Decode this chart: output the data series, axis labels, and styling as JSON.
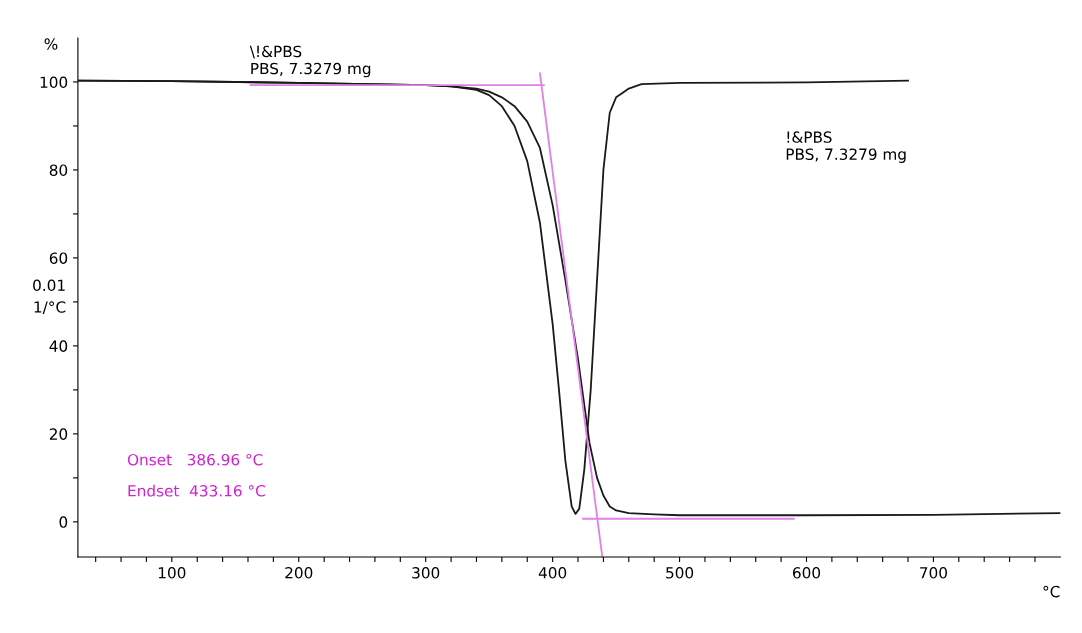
{
  "chart_data": {
    "type": "line",
    "xlabel": "°C",
    "ylabel": "%",
    "y2label": "0.01\n1/°C",
    "xlim": [
      26,
      800
    ],
    "xticks": [
      {
        "value": 40,
        "label": null
      },
      {
        "value": 60,
        "label": null
      },
      {
        "value": 80,
        "label": null
      },
      100,
      {
        "value": 120,
        "label": null
      },
      {
        "value": 140,
        "label": null
      },
      {
        "value": 160,
        "label": null
      },
      {
        "value": 180,
        "label": null
      },
      200,
      {
        "value": 220,
        "label": null
      },
      {
        "value": 240,
        "label": null
      },
      {
        "value": 260,
        "label": null
      },
      {
        "value": 280,
        "label": null
      },
      300,
      {
        "value": 320,
        "label": null
      },
      {
        "value": 340,
        "label": null
      },
      {
        "value": 360,
        "label": null
      },
      {
        "value": 380,
        "label": null
      },
      400,
      {
        "value": 420,
        "label": null
      },
      {
        "value": 440,
        "label": null
      },
      {
        "value": 460,
        "label": null
      },
      {
        "value": 480,
        "label": null
      },
      500,
      {
        "value": 520,
        "label": null
      },
      {
        "value": 540,
        "label": null
      },
      {
        "value": 560,
        "label": null
      },
      {
        "value": 580,
        "label": null
      },
      600,
      {
        "value": 620,
        "label": null
      },
      {
        "value": 640,
        "label": null
      },
      {
        "value": 660,
        "label": null
      },
      {
        "value": 680,
        "label": null
      },
      700,
      {
        "value": 720,
        "label": null
      },
      {
        "value": 740,
        "label": null
      },
      {
        "value": 760,
        "label": null
      },
      {
        "value": 780,
        "label": null
      }
    ],
    "ylim": [
      -8,
      110
    ],
    "yticks": [
      0,
      {
        "value": 10,
        "label": null
      },
      20,
      {
        "value": 30,
        "label": null
      },
      40,
      {
        "value": 50,
        "label": null
      },
      60,
      {
        "value": 70,
        "label": null
      },
      80,
      {
        "value": 90,
        "label": null
      },
      100
    ],
    "grid": false,
    "series": [
      {
        "color": "#1a1a1a",
        "x": [
          26,
          100,
          200,
          300,
          320,
          340,
          350,
          360,
          370,
          380,
          390,
          400,
          410,
          420,
          429,
          435,
          440,
          445,
          450,
          460,
          480,
          500,
          600,
          700,
          800
        ],
        "values": [
          100.3,
          100.2,
          99.8,
          99.3,
          99.0,
          98.5,
          97.8,
          96.5,
          94.5,
          91,
          85,
          72,
          55,
          37,
          18,
          10,
          6,
          3.5,
          2.6,
          2.0,
          1.7,
          1.5,
          1.5,
          1.6,
          2.0
        ]
      },
      {
        "color": "#1a1a1a",
        "x": [
          26,
          100,
          200,
          300,
          320,
          340,
          350,
          360,
          370,
          380,
          390,
          400,
          405,
          410,
          415,
          418,
          421,
          425,
          430,
          435,
          440,
          445,
          450,
          455,
          460,
          470,
          500,
          600,
          680
        ],
        "values": [
          100.3,
          100.2,
          99.8,
          99.3,
          99.0,
          98.2,
          97,
          94.5,
          90,
          82,
          68,
          45,
          30,
          14,
          3.5,
          1.8,
          3,
          12,
          30,
          55,
          80,
          93,
          96.5,
          97.5,
          98.5,
          99.5,
          99.8,
          99.9,
          100.3
        ]
      },
      {
        "color": "#e080e8",
        "x": [
          162,
          393
        ],
        "values": [
          99.3,
          99.3
        ]
      },
      {
        "color": "#e080e8",
        "x": [
          390,
          439
        ],
        "values": [
          102,
          -7.7
        ]
      },
      {
        "color": "#e080e8",
        "x": [
          424,
          590
        ],
        "values": [
          0.7,
          0.7
        ]
      }
    ],
    "annotations": [
      "\\!&PBS\nPBS, 7.3279 mg",
      "!&PBS\nPBS, 7.3279 mg",
      "Onset   386.96 °C",
      "Endset  433.16 °C"
    ]
  }
}
